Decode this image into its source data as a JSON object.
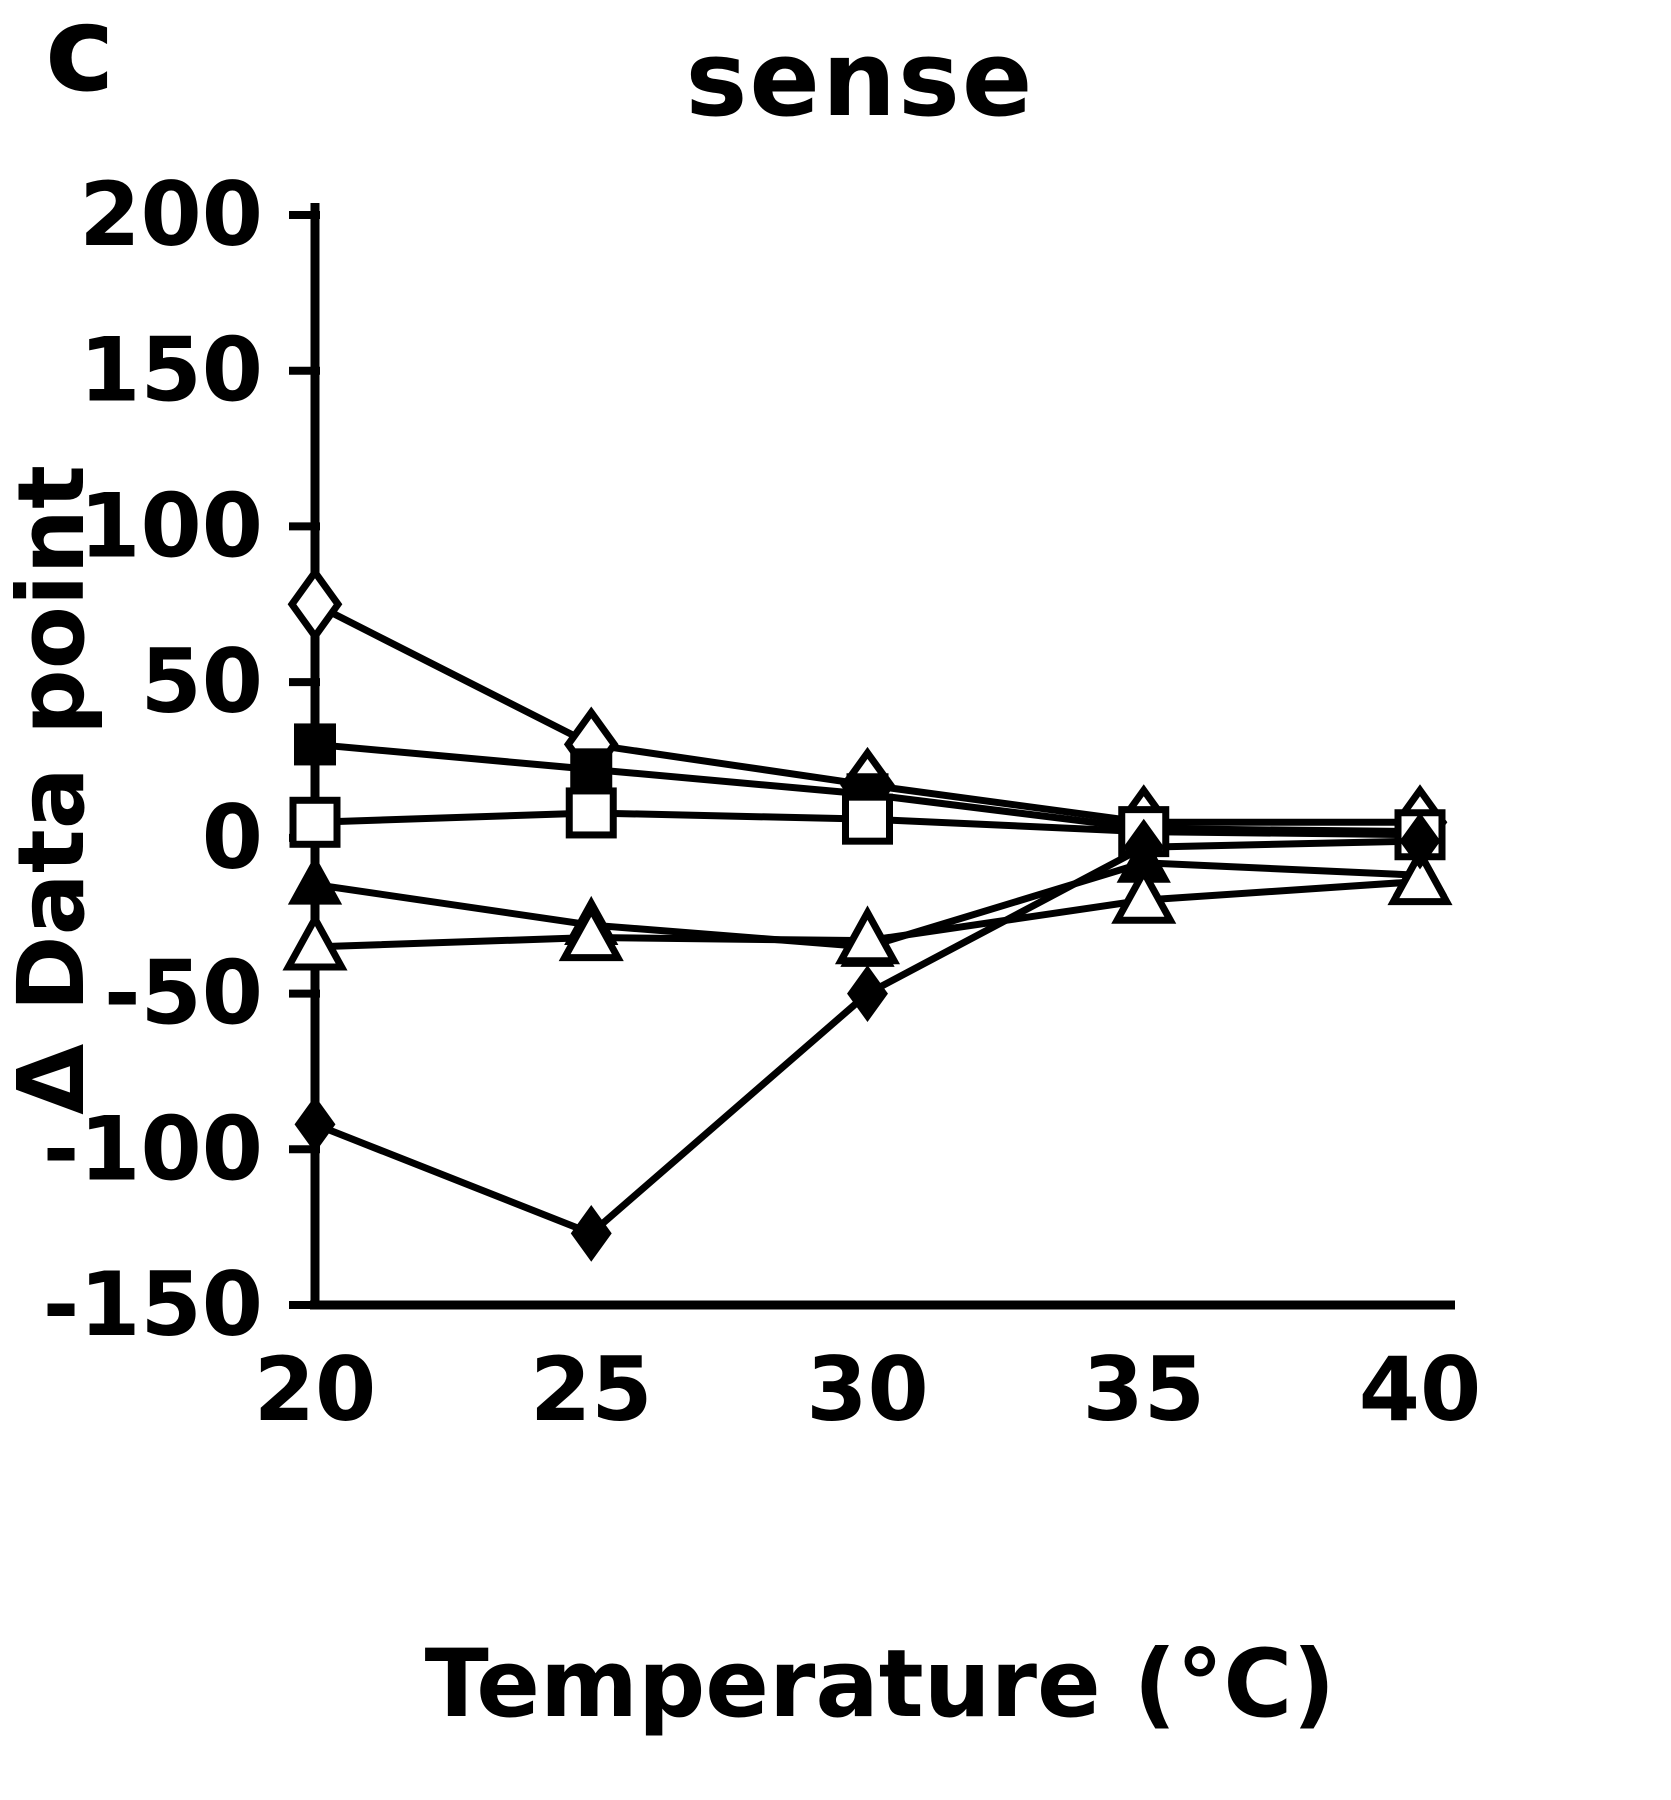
{
  "panel_label": "c",
  "chart_data": {
    "type": "line",
    "title": "sense",
    "xlabel": "Temperature (°C)",
    "ylabel": "Δ Data point",
    "x": [
      20,
      25,
      30,
      35,
      40
    ],
    "x_ticks": [
      "20",
      "25",
      "30",
      "35",
      "40"
    ],
    "y_ticks": [
      200,
      150,
      100,
      50,
      0,
      -50,
      -100,
      -150
    ],
    "xlim": [
      20,
      40
    ],
    "ylim": [
      -150,
      200
    ],
    "grid": false,
    "legend": "none",
    "colors": {
      "line": "#000000",
      "background": "#ffffff",
      "open_marker_fill": "#ffffff"
    },
    "series": [
      {
        "name": "open-diamond",
        "marker": "diamond-open",
        "values": [
          75,
          30,
          17,
          5,
          5
        ]
      },
      {
        "name": "filled-square",
        "marker": "square-filled",
        "values": [
          30,
          22,
          14,
          3,
          2
        ]
      },
      {
        "name": "open-square",
        "marker": "square-open",
        "values": [
          5,
          8,
          6,
          2,
          1
        ]
      },
      {
        "name": "filled-triangle",
        "marker": "triangle-filled",
        "values": [
          -15,
          -28,
          -35,
          -8,
          -12
        ]
      },
      {
        "name": "open-triangle",
        "marker": "triangle-open",
        "values": [
          -35,
          -32,
          -33,
          -20,
          -14
        ]
      },
      {
        "name": "filled-diamond",
        "marker": "diamond-filled",
        "values": [
          -92,
          -127,
          -50,
          -3,
          -1
        ]
      }
    ]
  }
}
